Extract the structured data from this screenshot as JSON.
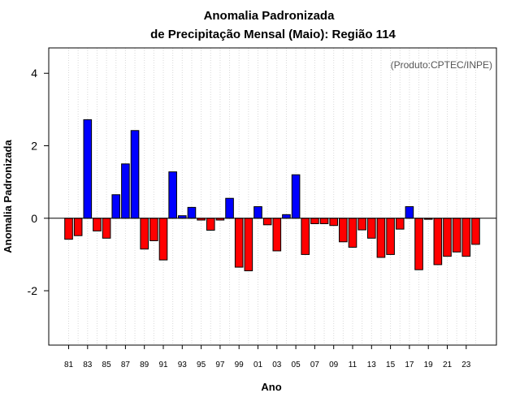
{
  "chart_data": {
    "type": "bar",
    "title_line1": "Anomalia Padronizada",
    "title_line2": "de Precipitação Mensal (Maio): Região 114",
    "xlabel": "Ano",
    "ylabel": "Anomalia Padronizada",
    "credit": "(Produto:CPTEC/INPE)",
    "ylim": [
      -3.5,
      4.7
    ],
    "yticks": [
      -2,
      0,
      2,
      4
    ],
    "grid": true,
    "positive_color": "#0000ff",
    "negative_color": "#ff0000",
    "categories": [
      "81",
      "82",
      "83",
      "84",
      "85",
      "86",
      "87",
      "88",
      "89",
      "90",
      "91",
      "92",
      "93",
      "94",
      "95",
      "96",
      "97",
      "98",
      "99",
      "00",
      "01",
      "02",
      "03",
      "04",
      "05",
      "06",
      "07",
      "08",
      "09",
      "10",
      "11",
      "12",
      "13",
      "14",
      "15",
      "16",
      "17",
      "18",
      "19",
      "20",
      "21",
      "22",
      "23",
      "24"
    ],
    "tick_labels": [
      "81",
      "83",
      "85",
      "87",
      "89",
      "91",
      "93",
      "95",
      "97",
      "99",
      "01",
      "03",
      "05",
      "07",
      "09",
      "11",
      "13",
      "15",
      "17",
      "19",
      "21",
      "23"
    ],
    "values": [
      -0.58,
      -0.48,
      2.72,
      -0.35,
      -0.55,
      0.65,
      1.5,
      2.42,
      -0.85,
      -0.62,
      -1.15,
      1.28,
      0.07,
      0.3,
      -0.05,
      -0.33,
      -0.05,
      0.55,
      -1.35,
      -1.45,
      0.32,
      -0.18,
      -0.9,
      0.1,
      1.2,
      -1.0,
      -0.15,
      -0.15,
      -0.2,
      -0.65,
      -0.8,
      -0.32,
      -0.55,
      -1.08,
      -1.0,
      -0.3,
      0.32,
      -1.42,
      -0.03,
      -1.28,
      -1.05,
      -0.93,
      -1.05,
      -0.72
    ]
  }
}
